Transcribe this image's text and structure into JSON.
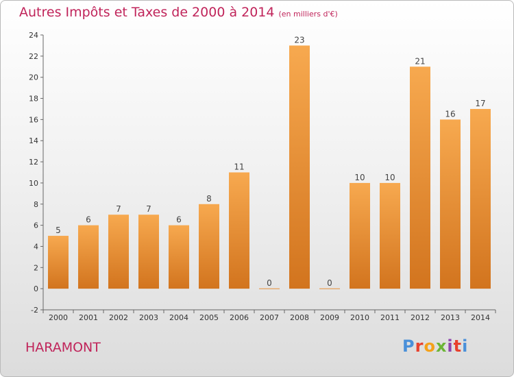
{
  "title": "Autres Impôts et Taxes de 2000 à 2014",
  "unit": "(en milliers d'€)",
  "place": "HARAMONT",
  "logo": "Proxiti",
  "logo_colors": [
    "#4a90d9",
    "#e8412d",
    "#f4a11a",
    "#6bb536",
    "#8e44ad",
    "#e8412d",
    "#4a90d9"
  ],
  "chart_data": {
    "type": "bar",
    "categories": [
      "2000",
      "2001",
      "2002",
      "2003",
      "2004",
      "2005",
      "2006",
      "2007",
      "2008",
      "2009",
      "2010",
      "2011",
      "2012",
      "2013",
      "2014"
    ],
    "values": [
      5,
      6,
      7,
      7,
      6,
      8,
      11,
      0,
      23,
      0,
      10,
      10,
      21,
      16,
      17
    ],
    "ylim": [
      -2,
      24
    ],
    "yticks": [
      -2,
      0,
      2,
      4,
      6,
      8,
      10,
      12,
      14,
      16,
      18,
      20,
      22,
      24
    ],
    "grid": false,
    "bar_color": "#f0953a"
  }
}
